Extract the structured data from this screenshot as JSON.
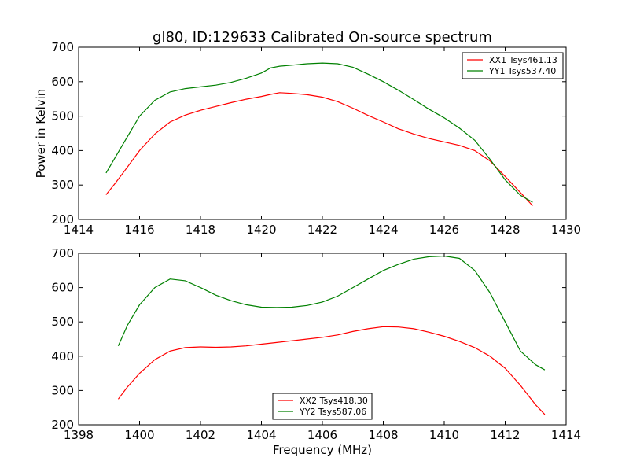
{
  "title": "gl80, ID:129633 Calibrated On-source spectrum",
  "colors": {
    "xx": "#ff0000",
    "yy": "#008000",
    "frame": "#000000"
  },
  "chart_data": [
    {
      "type": "line",
      "ylabel": "Power in Kelvin",
      "xlabel": "",
      "xlim": [
        1414,
        1430
      ],
      "ylim": [
        200,
        700
      ],
      "xticks": [
        1414,
        1416,
        1418,
        1420,
        1422,
        1424,
        1426,
        1428,
        1430
      ],
      "xtick_labels": [
        "1414",
        "1416",
        "1418",
        "1420",
        "1422",
        "1424",
        "1426",
        "1428",
        "1430"
      ],
      "yticks": [
        200,
        300,
        400,
        500,
        600,
        700
      ],
      "ytick_labels": [
        "200",
        "300",
        "400",
        "500",
        "600",
        "700"
      ],
      "legend_position": "top-right",
      "series": [
        {
          "name": "XX1 Tsys461.13",
          "color": "#ff0000",
          "x": [
            1414.9,
            1415.2,
            1415.5,
            1416.0,
            1416.5,
            1417.0,
            1417.5,
            1418.0,
            1418.5,
            1419.0,
            1419.5,
            1420.0,
            1420.3,
            1420.6,
            1421.0,
            1421.5,
            1422.0,
            1422.5,
            1423.0,
            1423.5,
            1424.0,
            1424.5,
            1425.0,
            1425.5,
            1426.0,
            1426.5,
            1427.0,
            1427.5,
            1428.0,
            1428.5,
            1428.9
          ],
          "y": [
            272,
            305,
            340,
            400,
            448,
            483,
            503,
            517,
            528,
            539,
            549,
            557,
            563,
            568,
            566,
            562,
            555,
            542,
            523,
            502,
            483,
            463,
            448,
            435,
            425,
            415,
            400,
            370,
            325,
            278,
            240
          ]
        },
        {
          "name": "YY1 Tsys537.40",
          "color": "#008000",
          "x": [
            1414.9,
            1415.2,
            1415.5,
            1416.0,
            1416.5,
            1417.0,
            1417.5,
            1418.0,
            1418.5,
            1419.0,
            1419.5,
            1420.0,
            1420.3,
            1420.6,
            1421.0,
            1421.5,
            1422.0,
            1422.5,
            1423.0,
            1423.5,
            1424.0,
            1424.5,
            1425.0,
            1425.5,
            1426.0,
            1426.5,
            1427.0,
            1427.5,
            1428.0,
            1428.5,
            1428.9
          ],
          "y": [
            335,
            380,
            425,
            500,
            546,
            570,
            580,
            585,
            590,
            598,
            610,
            625,
            640,
            645,
            648,
            652,
            654,
            652,
            642,
            622,
            600,
            575,
            548,
            520,
            495,
            465,
            430,
            375,
            315,
            270,
            250
          ]
        }
      ]
    },
    {
      "type": "line",
      "xlabel": "Frequency (MHz)",
      "ylabel": "",
      "xlim": [
        1398,
        1414
      ],
      "ylim": [
        200,
        700
      ],
      "xticks": [
        1398,
        1400,
        1402,
        1404,
        1406,
        1408,
        1410,
        1412,
        1414
      ],
      "xtick_labels": [
        "1398",
        "1400",
        "1402",
        "1404",
        "1406",
        "1408",
        "1410",
        "1412",
        "1414"
      ],
      "yticks": [
        200,
        300,
        400,
        500,
        600,
        700
      ],
      "ytick_labels": [
        "200",
        "300",
        "400",
        "500",
        "600",
        "700"
      ],
      "legend_position": "bottom-center",
      "series": [
        {
          "name": "XX2 Tsys418.30",
          "color": "#ff0000",
          "x": [
            1399.3,
            1399.6,
            1400.0,
            1400.5,
            1401.0,
            1401.5,
            1402.0,
            1402.5,
            1403.0,
            1403.5,
            1404.0,
            1404.5,
            1405.0,
            1405.5,
            1406.0,
            1406.5,
            1407.0,
            1407.5,
            1408.0,
            1408.5,
            1409.0,
            1409.5,
            1410.0,
            1410.5,
            1411.0,
            1411.5,
            1412.0,
            1412.5,
            1413.0,
            1413.3
          ],
          "y": [
            275,
            310,
            350,
            390,
            415,
            425,
            427,
            426,
            427,
            430,
            435,
            440,
            445,
            450,
            455,
            462,
            472,
            480,
            486,
            485,
            480,
            470,
            458,
            443,
            425,
            400,
            365,
            315,
            258,
            230
          ]
        },
        {
          "name": "YY2 Tsys587.06",
          "color": "#008000",
          "x": [
            1399.3,
            1399.6,
            1400.0,
            1400.5,
            1401.0,
            1401.5,
            1402.0,
            1402.5,
            1403.0,
            1403.5,
            1404.0,
            1404.5,
            1405.0,
            1405.5,
            1406.0,
            1406.5,
            1407.0,
            1407.5,
            1408.0,
            1408.5,
            1409.0,
            1409.5,
            1410.0,
            1410.5,
            1411.0,
            1411.5,
            1412.0,
            1412.5,
            1413.0,
            1413.3
          ],
          "y": [
            430,
            490,
            550,
            600,
            625,
            620,
            600,
            578,
            562,
            550,
            543,
            542,
            543,
            548,
            558,
            575,
            600,
            625,
            650,
            668,
            683,
            690,
            692,
            685,
            650,
            585,
            500,
            415,
            375,
            360
          ]
        }
      ]
    }
  ]
}
